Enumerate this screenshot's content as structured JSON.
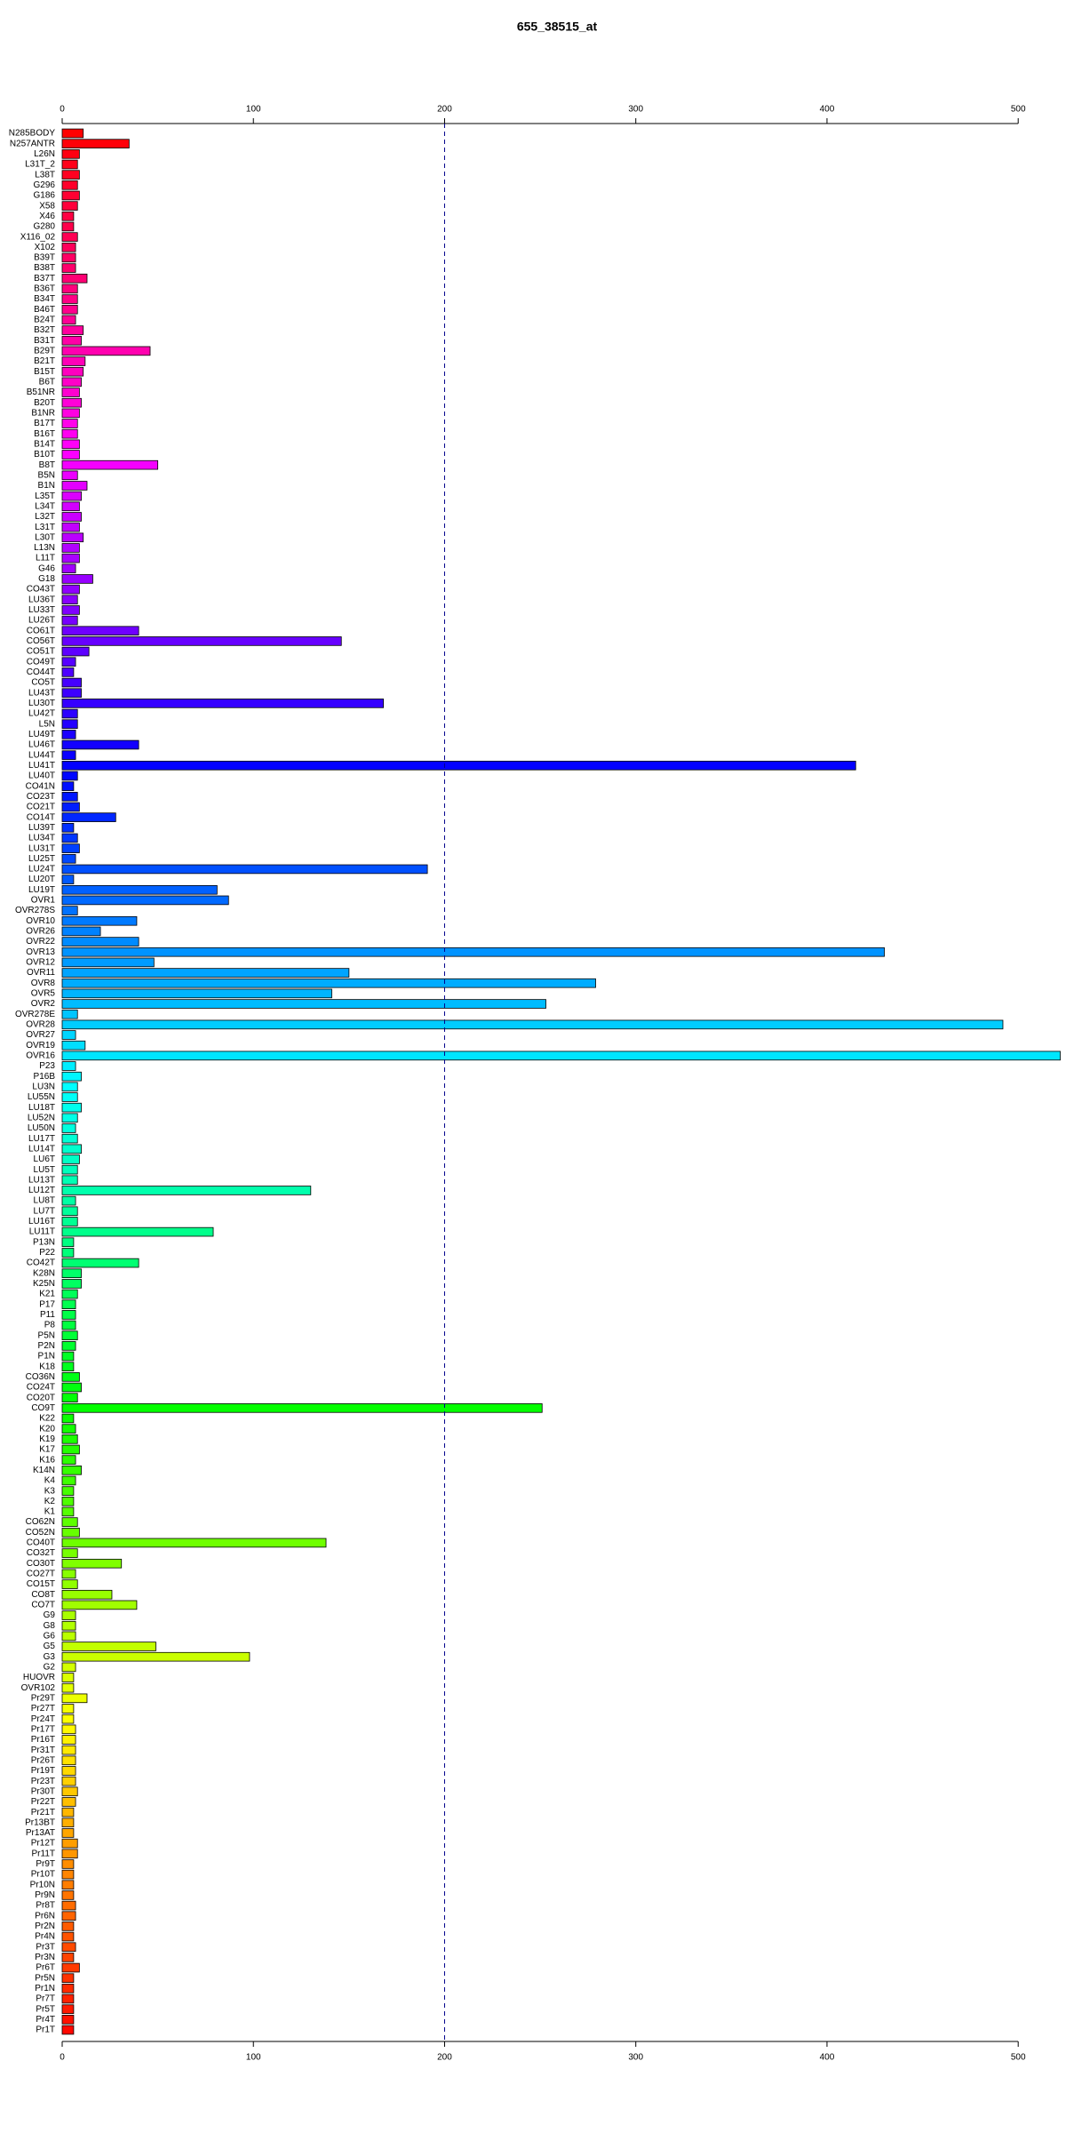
{
  "chart_data": {
    "type": "barh",
    "title": "655_38515_at",
    "categories": [
      "N285BODY",
      "N257ANTR",
      "L26N",
      "L31T_2",
      "L38T",
      "G296",
      "G186",
      "X58",
      "X46",
      "G280",
      "X116_02",
      "X102",
      "B39T",
      "B38T",
      "B37T",
      "B36T",
      "B34T",
      "B46T",
      "B24T",
      "B32T",
      "B31T",
      "B29T",
      "B21T",
      "B15T",
      "B6T",
      "B51NR",
      "B20T",
      "B1NR",
      "B17T",
      "B16T",
      "B14T",
      "B10T",
      "B8T",
      "B5N",
      "B1N",
      "L35T",
      "L34T",
      "L32T",
      "L31T",
      "L30T",
      "L13N",
      "L11T",
      "G46",
      "G18",
      "CO43T",
      "LU36T",
      "LU33T",
      "LU26T",
      "CO61T",
      "CO56T",
      "CO51T",
      "CO49T",
      "CO44T",
      "CO5T",
      "LU43T",
      "LU30T",
      "LU42T",
      "L5N",
      "LU49T",
      "LU46T",
      "LU44T",
      "LU41T",
      "LU40T",
      "CO41N",
      "CO23T",
      "CO21T",
      "CO14T",
      "LU39T",
      "LU34T",
      "LU31T",
      "LU25T",
      "LU24T",
      "LU20T",
      "LU19T",
      "OVR1",
      "OVR278S",
      "OVR10",
      "OVR26",
      "OVR22",
      "OVR13",
      "OVR12",
      "OVR11",
      "OVR8",
      "OVR5",
      "OVR2",
      "OVR278E",
      "OVR28",
      "OVR27",
      "OVR19",
      "OVR16",
      "P23",
      "P16B",
      "LU3N",
      "LU55N",
      "LU18T",
      "LU52N",
      "LU50N",
      "LU17T",
      "LU14T",
      "LU6T",
      "LU5T",
      "LU13T",
      "LU12T",
      "LU8T",
      "LU7T",
      "LU16T",
      "LU11T",
      "P13N",
      "P22",
      "CO42T",
      "K28N",
      "K25N",
      "K21",
      "P17",
      "P11",
      "P8",
      "P5N",
      "P2N",
      "P1N",
      "K18",
      "CO36N",
      "CO24T",
      "CO20T",
      "CO9T",
      "K22",
      "K20",
      "K19",
      "K17",
      "K16",
      "K14N",
      "K4",
      "K3",
      "K2",
      "K1",
      "CO62N",
      "CO52N",
      "CO40T",
      "CO32T",
      "CO30T",
      "CO27T",
      "CO15T",
      "CO8T",
      "CO7T",
      "G9",
      "G8",
      "G6",
      "G5",
      "G3",
      "G2",
      "HUOVR",
      "OVR102",
      "Pr29T",
      "Pr27T",
      "Pr24T",
      "Pr17T",
      "Pr16T",
      "Pr31T",
      "Pr26T",
      "Pr19T",
      "Pr23T",
      "Pr30T",
      "Pr22T",
      "Pr21T",
      "Pr13BT",
      "Pr13AT",
      "Pr12T",
      "Pr11T",
      "Pr9T",
      "Pr10T",
      "Pr10N",
      "Pr9N",
      "Pr8T",
      "Pr6N",
      "Pr2N",
      "Pr4N",
      "Pr3T",
      "Pr3N",
      "Pr6T",
      "Pr5N",
      "Pr1N",
      "Pr7T",
      "Pr5T",
      "Pr4T",
      "Pr1T"
    ],
    "values": [
      11,
      35,
      9,
      8,
      9,
      8,
      9,
      8,
      6,
      6,
      8,
      7,
      7,
      7,
      13,
      8,
      8,
      8,
      7,
      11,
      10,
      46,
      12,
      11,
      10,
      9,
      10,
      9,
      8,
      8,
      9,
      9,
      50,
      8,
      13,
      10,
      9,
      10,
      9,
      11,
      9,
      9,
      7,
      16,
      9,
      8,
      9,
      8,
      40,
      146,
      14,
      7,
      6,
      10,
      10,
      168,
      8,
      8,
      7,
      40,
      7,
      415,
      8,
      6,
      8,
      9,
      28,
      6,
      8,
      9,
      7,
      191,
      6,
      81,
      87,
      8,
      39,
      20,
      40,
      430,
      48,
      150,
      279,
      141,
      253,
      8,
      492,
      7,
      12,
      522,
      7,
      10,
      8,
      8,
      10,
      8,
      7,
      8,
      10,
      9,
      8,
      8,
      130,
      7,
      8,
      8,
      79,
      6,
      6,
      40,
      10,
      10,
      8,
      7,
      7,
      7,
      8,
      7,
      6,
      6,
      9,
      10,
      8,
      251,
      6,
      7,
      8,
      9,
      7,
      10,
      7,
      6,
      6,
      6,
      8,
      9,
      138,
      8,
      31,
      7,
      8,
      26,
      39,
      7,
      7,
      7,
      49,
      98,
      7,
      6,
      6,
      13,
      6,
      6,
      7,
      7,
      7,
      7,
      7,
      7,
      8,
      7,
      6,
      6,
      6,
      8,
      8,
      6,
      6,
      6,
      6,
      7,
      7,
      6,
      6,
      7,
      6,
      9,
      6,
      6,
      6,
      6,
      6,
      6
    ],
    "palette": "rainbow",
    "xlim": [
      0,
      525
    ],
    "xticks": [
      0,
      100,
      200,
      300,
      400,
      500
    ],
    "vline": 200,
    "grid": false
  }
}
